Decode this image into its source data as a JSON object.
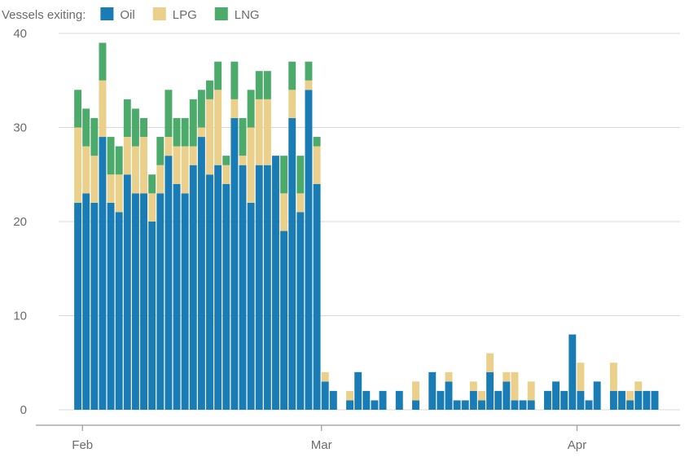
{
  "chart_data": {
    "type": "bar",
    "stacked": true,
    "legend_title": "Vessels exiting:",
    "legend_position": "top-left",
    "grid": "horizontal",
    "ylim": [
      0,
      40
    ],
    "yticks": [
      0,
      10,
      20,
      30,
      40
    ],
    "x_start": "2026-01-29",
    "x_end": "2026-04-12",
    "x_ticks": [
      {
        "date": "2026-01-31",
        "label": "Feb"
      },
      {
        "date": "2026-03-01",
        "label": "Mar"
      },
      {
        "date": "2026-04-01",
        "label": "Apr"
      }
    ],
    "dates": [
      "2026-01-30",
      "2026-01-31",
      "2026-02-01",
      "2026-02-02",
      "2026-02-03",
      "2026-02-04",
      "2026-02-05",
      "2026-02-06",
      "2026-02-07",
      "2026-02-08",
      "2026-02-09",
      "2026-02-10",
      "2026-02-11",
      "2026-02-12",
      "2026-02-13",
      "2026-02-14",
      "2026-02-15",
      "2026-02-16",
      "2026-02-17",
      "2026-02-18",
      "2026-02-19",
      "2026-02-20",
      "2026-02-21",
      "2026-02-22",
      "2026-02-23",
      "2026-02-24",
      "2026-02-25",
      "2026-02-26",
      "2026-02-27",
      "2026-02-28",
      "2026-03-01",
      "2026-03-02",
      "2026-03-03",
      "2026-03-04",
      "2026-03-05",
      "2026-03-06",
      "2026-03-07",
      "2026-03-08",
      "2026-03-09",
      "2026-03-10",
      "2026-03-11",
      "2026-03-12",
      "2026-03-13",
      "2026-03-14",
      "2026-03-15",
      "2026-03-16",
      "2026-03-17",
      "2026-03-18",
      "2026-03-19",
      "2026-03-20",
      "2026-03-21",
      "2026-03-22",
      "2026-03-23",
      "2026-03-24",
      "2026-03-25",
      "2026-03-26",
      "2026-03-27",
      "2026-03-28",
      "2026-03-29",
      "2026-03-30",
      "2026-03-31",
      "2026-04-01",
      "2026-04-02",
      "2026-04-03",
      "2026-04-04",
      "2026-04-05",
      "2026-04-06",
      "2026-04-07",
      "2026-04-08",
      "2026-04-09",
      "2026-04-10",
      "2026-04-11",
      "2026-04-12"
    ],
    "series": [
      {
        "name": "Oil",
        "color": "#1a7cb5",
        "values": [
          22,
          23,
          22,
          29,
          22,
          21,
          25,
          23,
          23,
          20,
          23,
          27,
          24,
          23,
          26,
          29,
          25,
          26,
          24,
          31,
          26,
          22,
          26,
          26,
          27,
          19,
          31,
          21,
          34,
          24,
          3,
          2,
          0,
          1,
          4,
          2,
          1,
          2,
          0,
          2,
          0,
          1,
          0,
          4,
          2,
          3,
          1,
          1,
          2,
          1,
          4,
          2,
          3,
          1,
          1,
          1,
          0,
          2,
          3,
          2,
          8,
          2,
          1,
          3,
          0,
          2,
          2,
          1,
          2,
          2,
          2,
          0,
          0
        ]
      },
      {
        "name": "LPG",
        "color": "#ead08a",
        "values": [
          8,
          5,
          5,
          6,
          3,
          4,
          4,
          5,
          6,
          3,
          3,
          2,
          4,
          5,
          2,
          1,
          8,
          8,
          2,
          2,
          1,
          8,
          7,
          7,
          0,
          4,
          3,
          2,
          1,
          4,
          1,
          0,
          0,
          1,
          0,
          0,
          0,
          0,
          0,
          0,
          0,
          2,
          0,
          0,
          0,
          1,
          0,
          0,
          1,
          1,
          2,
          0,
          1,
          3,
          0,
          2,
          0,
          0,
          0,
          0,
          0,
          3,
          0,
          0,
          0,
          3,
          0,
          1,
          1,
          0,
          0,
          0,
          0
        ]
      },
      {
        "name": "LNG",
        "color": "#4caa6a",
        "values": [
          4,
          4,
          4,
          4,
          4,
          3,
          4,
          4,
          2,
          2,
          3,
          5,
          3,
          3,
          5,
          4,
          2,
          3,
          1,
          4,
          4,
          4,
          3,
          3,
          0,
          4,
          3,
          4,
          2,
          1,
          0,
          0,
          0,
          0,
          0,
          0,
          0,
          0,
          0,
          0,
          0,
          0,
          0,
          0,
          0,
          0,
          0,
          0,
          0,
          0,
          0,
          0,
          0,
          0,
          0,
          0,
          0,
          0,
          0,
          0,
          0,
          0,
          0,
          0,
          0,
          0,
          0,
          0,
          0,
          0,
          0,
          0,
          0
        ]
      }
    ]
  }
}
